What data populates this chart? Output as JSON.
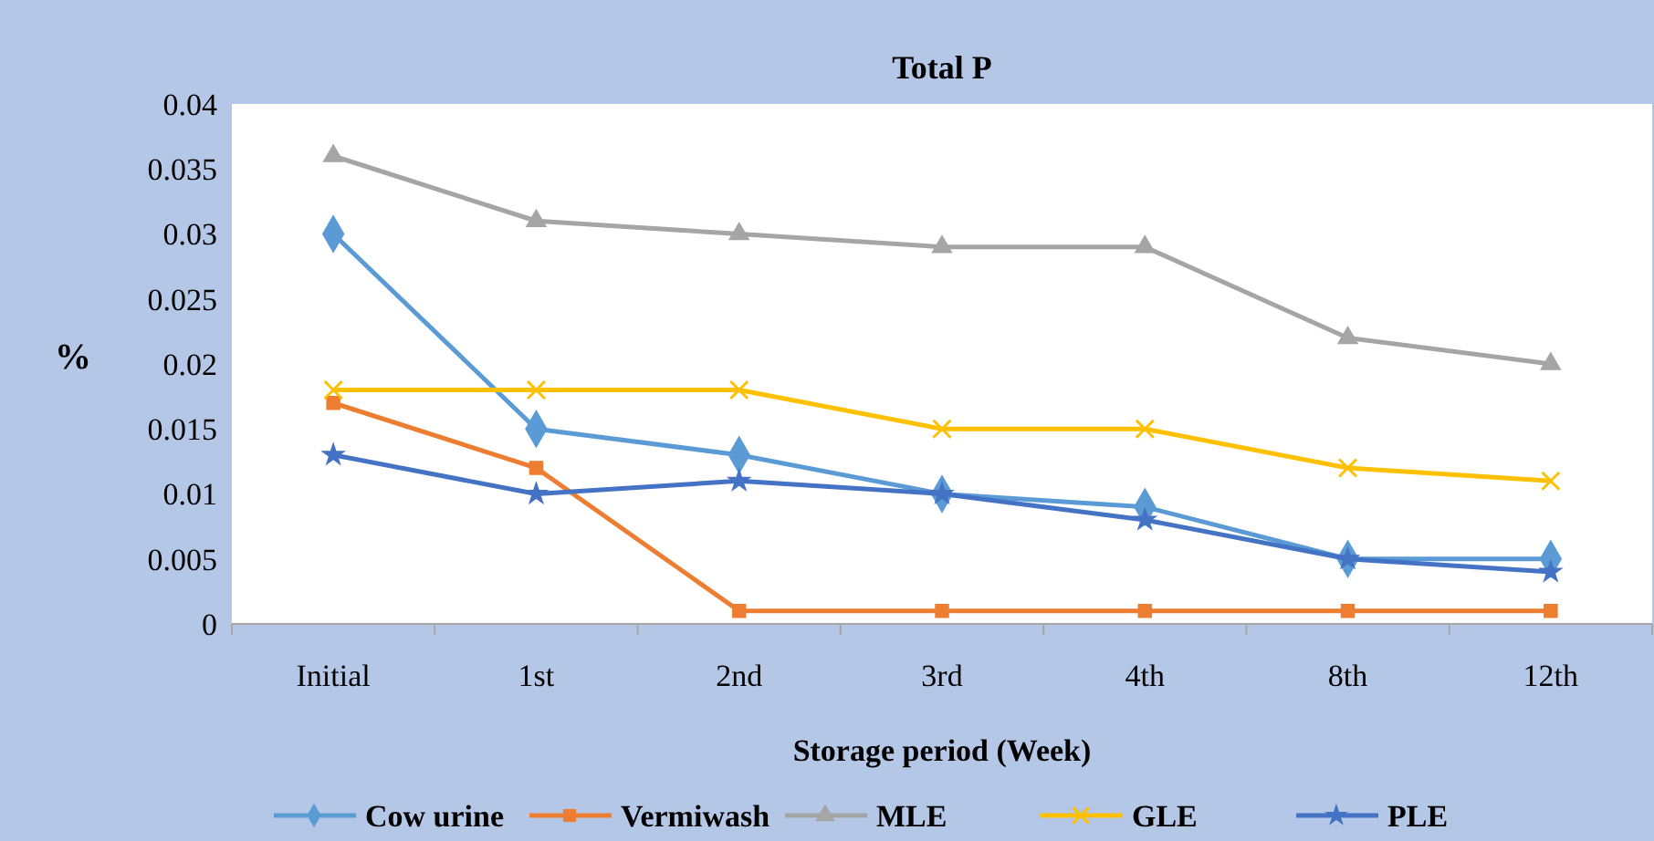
{
  "chart_data": {
    "type": "line",
    "title": "Total P",
    "xlabel": "Storage period  (Week)",
    "ylabel": "%",
    "categories": [
      "Initial",
      "1st",
      "2nd",
      "3rd",
      "4th",
      "8th",
      "12th"
    ],
    "series": [
      {
        "name": "Cow urine",
        "color": "#5b9bd5",
        "marker": "diamond",
        "values": [
          0.03,
          0.015,
          0.013,
          0.01,
          0.009,
          0.005,
          0.005
        ]
      },
      {
        "name": "Vermiwash",
        "color": "#ed7d31",
        "marker": "square",
        "values": [
          0.017,
          0.012,
          0.001,
          0.001,
          0.001,
          0.001,
          0.001
        ]
      },
      {
        "name": "MLE",
        "color": "#a5a5a5",
        "marker": "triangle",
        "values": [
          0.036,
          0.031,
          0.03,
          0.029,
          0.029,
          0.022,
          0.02
        ]
      },
      {
        "name": "GLE",
        "color": "#ffc000",
        "marker": "cross",
        "values": [
          0.018,
          0.018,
          0.018,
          0.015,
          0.015,
          0.012,
          0.011
        ]
      },
      {
        "name": "PLE",
        "color": "#4472c4",
        "marker": "star",
        "values": [
          0.013,
          0.01,
          0.011,
          0.01,
          0.008,
          0.005,
          0.004
        ]
      }
    ],
    "ylim": [
      0,
      0.04
    ],
    "yticks": [
      0,
      0.005,
      0.01,
      0.015,
      0.02,
      0.025,
      0.03,
      0.035,
      0.04
    ],
    "grid": false,
    "legend": "bottom",
    "line_style": "solid"
  }
}
